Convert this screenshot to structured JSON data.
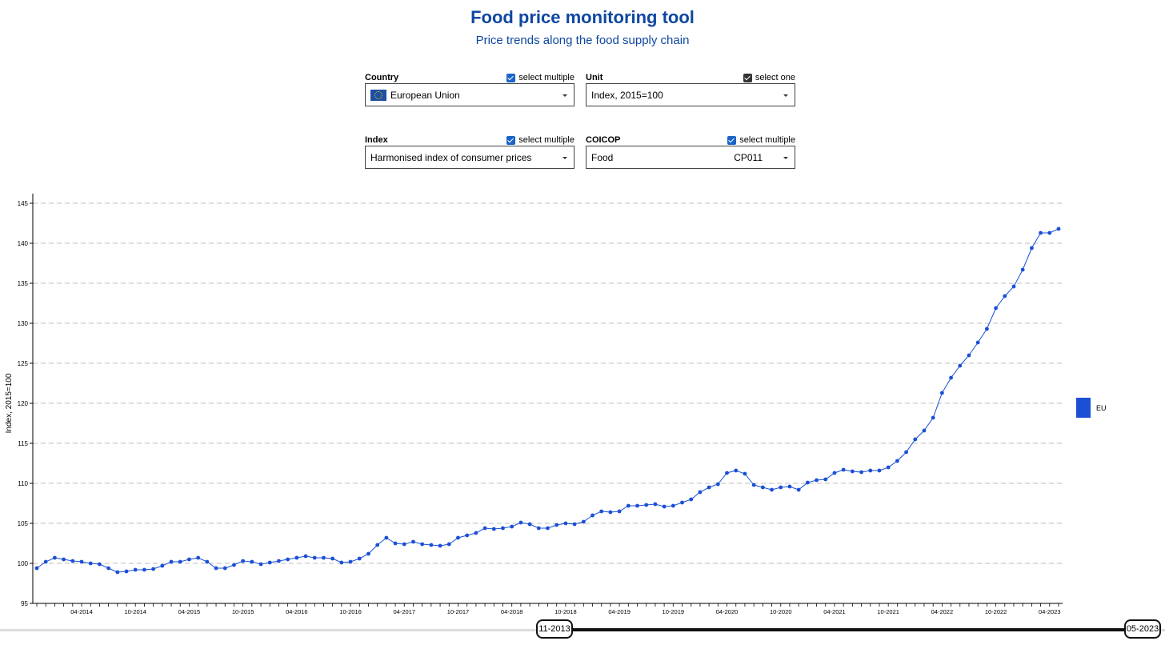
{
  "header": {
    "title": "Food price monitoring tool",
    "subtitle": "Price trends along the food supply chain"
  },
  "filters": {
    "country": {
      "label": "Country",
      "option_label": "select multiple",
      "value": "European Union",
      "icon": "eu-flag-icon"
    },
    "unit": {
      "label": "Unit",
      "option_label": "select one",
      "value": "Index, 2015=100"
    },
    "index": {
      "label": "Index",
      "option_label": "select multiple",
      "value": "Harmonised index of consumer prices"
    },
    "coicop": {
      "label": "COICOP",
      "option_label": "select multiple",
      "value": "Food",
      "code": "CP011"
    }
  },
  "slider": {
    "start_label": "11-2013",
    "end_label": "05-2023"
  },
  "colors": {
    "accent": "#0e47a1",
    "series": "#1a4fd6",
    "checkbox": "#1a63c8"
  },
  "chart_data": {
    "type": "line",
    "ylabel": "Index, 2015=100",
    "xlabel": "",
    "title": "",
    "ylim": [
      95,
      145
    ],
    "yticks": [
      95,
      100,
      105,
      110,
      115,
      120,
      125,
      130,
      135,
      140,
      145
    ],
    "grid": true,
    "legend_position": "right",
    "x_start": "11-2013",
    "x_tick_labels": [
      "04-2014",
      "10-2014",
      "04-2015",
      "10-2015",
      "04-2016",
      "10-2016",
      "04-2017",
      "10-2017",
      "04-2018",
      "10-2018",
      "04-2019",
      "10-2019",
      "04-2020",
      "10-2020",
      "04-2021",
      "10-2021",
      "04-2022",
      "10-2022",
      "04-2023"
    ],
    "series": [
      {
        "name": "EU",
        "values": [
          99.4,
          100.2,
          100.7,
          100.5,
          100.3,
          100.2,
          100.0,
          99.9,
          99.4,
          98.9,
          99.0,
          99.2,
          99.2,
          99.3,
          99.7,
          100.2,
          100.2,
          100.5,
          100.7,
          100.2,
          99.4,
          99.4,
          99.8,
          100.3,
          100.2,
          99.9,
          100.1,
          100.3,
          100.5,
          100.7,
          100.9,
          100.7,
          100.7,
          100.6,
          100.1,
          100.2,
          100.6,
          101.2,
          102.3,
          103.2,
          102.5,
          102.4,
          102.7,
          102.4,
          102.3,
          102.2,
          102.4,
          103.2,
          103.5,
          103.8,
          104.4,
          104.3,
          104.4,
          104.6,
          105.1,
          104.9,
          104.4,
          104.4,
          104.8,
          105.0,
          104.9,
          105.2,
          106.0,
          106.5,
          106.4,
          106.5,
          107.2,
          107.2,
          107.3,
          107.4,
          107.1,
          107.2,
          107.6,
          108.0,
          108.9,
          109.5,
          109.9,
          111.3,
          111.6,
          111.2,
          109.8,
          109.5,
          109.2,
          109.5,
          109.6,
          109.2,
          110.1,
          110.4,
          110.5,
          111.3,
          111.7,
          111.5,
          111.4,
          111.6,
          111.6,
          112.0,
          112.8,
          113.9,
          115.5,
          116.6,
          118.2,
          121.3,
          123.2,
          124.7,
          126.0,
          127.6,
          129.3,
          131.9,
          133.4,
          134.6,
          136.7,
          139.4,
          141.3,
          141.3,
          141.8
        ]
      }
    ]
  }
}
